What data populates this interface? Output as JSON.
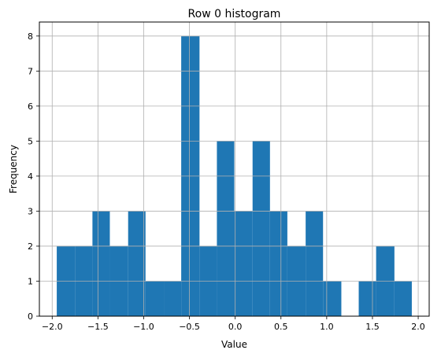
{
  "chart_data": {
    "type": "bar",
    "title": "Row 0 histogram",
    "xlabel": "Value",
    "ylabel": "Frequency",
    "bins": [
      {
        "x_start": -1.95,
        "x_end": -1.75,
        "count": 2
      },
      {
        "x_start": -1.75,
        "x_end": -1.56,
        "count": 2
      },
      {
        "x_start": -1.56,
        "x_end": -1.37,
        "count": 3
      },
      {
        "x_start": -1.37,
        "x_end": -1.17,
        "count": 2
      },
      {
        "x_start": -1.17,
        "x_end": -0.98,
        "count": 3
      },
      {
        "x_start": -0.98,
        "x_end": -0.78,
        "count": 1
      },
      {
        "x_start": -0.78,
        "x_end": -0.59,
        "count": 1
      },
      {
        "x_start": -0.59,
        "x_end": -0.39,
        "count": 8
      },
      {
        "x_start": -0.39,
        "x_end": -0.2,
        "count": 2
      },
      {
        "x_start": -0.2,
        "x_end": -0.01,
        "count": 5
      },
      {
        "x_start": -0.01,
        "x_end": 0.19,
        "count": 3
      },
      {
        "x_start": 0.19,
        "x_end": 0.38,
        "count": 5
      },
      {
        "x_start": 0.38,
        "x_end": 0.57,
        "count": 3
      },
      {
        "x_start": 0.57,
        "x_end": 0.77,
        "count": 2
      },
      {
        "x_start": 0.77,
        "x_end": 0.96,
        "count": 3
      },
      {
        "x_start": 0.96,
        "x_end": 1.16,
        "count": 1
      },
      {
        "x_start": 1.16,
        "x_end": 1.35,
        "count": 0
      },
      {
        "x_start": 1.35,
        "x_end": 1.54,
        "count": 1
      },
      {
        "x_start": 1.54,
        "x_end": 1.74,
        "count": 2
      },
      {
        "x_start": 1.74,
        "x_end": 1.93,
        "count": 1
      }
    ],
    "xlim": [
      -2.14,
      2.12
    ],
    "ylim": [
      0,
      8.4
    ],
    "xticks": [
      -2.0,
      -1.5,
      -1.0,
      -0.5,
      0.0,
      0.5,
      1.0,
      1.5,
      2.0
    ],
    "xtick_labels": [
      "−2.0",
      "−1.5",
      "−1.0",
      "−0.5",
      "0.0",
      "0.5",
      "1.0",
      "1.5",
      "2.0"
    ],
    "yticks": [
      0,
      1,
      2,
      3,
      4,
      5,
      6,
      7,
      8
    ],
    "ytick_labels": [
      "0",
      "1",
      "2",
      "3",
      "4",
      "5",
      "6",
      "7",
      "8"
    ],
    "grid": true,
    "bar_color": "#1f77b4",
    "grid_color": "#b0b0b0"
  }
}
